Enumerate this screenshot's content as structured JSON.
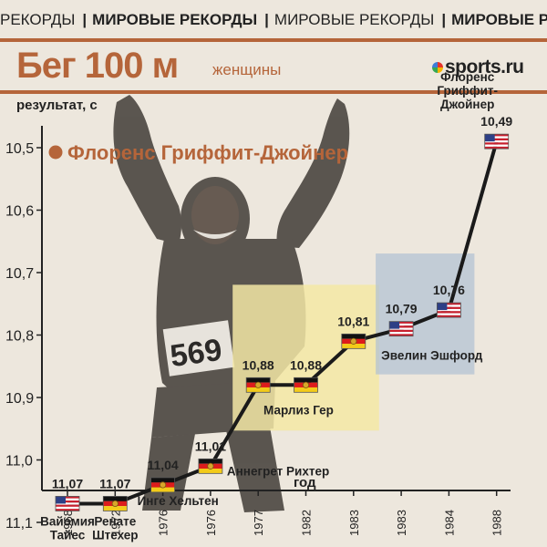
{
  "ticker": {
    "items": [
      "РЕКОРДЫ",
      "МИРОВЫЕ РЕКОРДЫ",
      "МИРОВЫЕ РЕКОРДЫ",
      "МИРОВЫЕ РЕКОРДЫ"
    ],
    "bold": [
      false,
      true,
      false,
      true
    ]
  },
  "title": "Бег 100 м",
  "subtitle": "женщины",
  "brand": "sports.ru",
  "colors": {
    "accent": "#b5653a",
    "line": "#1a1a1a",
    "highlight_yellow": "#f3e7a4",
    "highlight_blue": "#b3c3d3"
  },
  "chart_data": {
    "type": "line",
    "ylabel": "результат, с",
    "xlabel": "год",
    "y_ticks": [
      "10,5",
      "10,6",
      "10,7",
      "10,8",
      "10,9",
      "11,0",
      "11,1"
    ],
    "y_tick_values": [
      10.5,
      10.6,
      10.7,
      10.8,
      10.9,
      11.0,
      11.1
    ],
    "y_inverted": true,
    "ylim": [
      10.45,
      11.15
    ],
    "categories": [
      "1968",
      "1972",
      "1976",
      "1976",
      "1977",
      "1982",
      "1983",
      "1983",
      "1984",
      "1988"
    ],
    "values": [
      11.07,
      11.07,
      11.04,
      11.01,
      10.88,
      10.88,
      10.81,
      10.79,
      10.76,
      10.49
    ],
    "value_labels": [
      "11,07",
      "11,07",
      "11,04",
      "11,01",
      "10,88",
      "10,88",
      "10,81",
      "10,79",
      "10,76",
      "10,49"
    ],
    "flags": [
      "us",
      "gdr",
      "gdr",
      "gdr",
      "gdr",
      "gdr",
      "gdr",
      "us",
      "us",
      "us"
    ],
    "athlete_labels": [
      {
        "text": "Вайомия\nТайес",
        "index": 0
      },
      {
        "text": "Ренате\nШтехер",
        "index": 1
      },
      {
        "text": "Инге Хельтен",
        "index": 2
      },
      {
        "text": "Аннегрет Рихтер",
        "index": 3
      },
      {
        "text": "Марлиз Гер",
        "index": 5
      },
      {
        "text": "Эвелин Эшфорд",
        "index": 7
      },
      {
        "text": "Флоренс\nГриффит-\nДжойнер",
        "index": 9
      }
    ],
    "highlights": [
      {
        "from_index": 4,
        "to_index": 6,
        "color": "#f3e7a4"
      },
      {
        "from_index": 7,
        "to_index": 8,
        "color": "#b3c3d3"
      }
    ],
    "annotation": "Флоренс Гриффит-Джойнер",
    "bib_number": "569",
    "grid": false,
    "legend": "none"
  }
}
